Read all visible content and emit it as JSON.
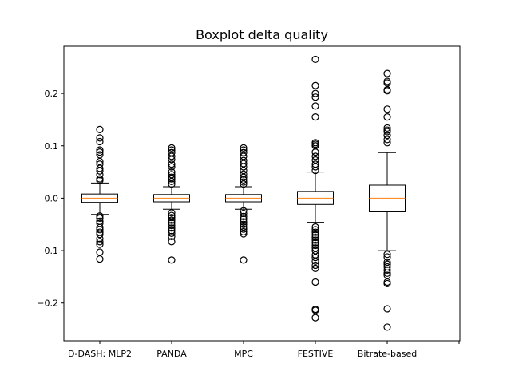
{
  "chart_data": {
    "type": "boxplot",
    "title": "Boxplot delta quality",
    "xlabel": "",
    "ylabel": "",
    "ylim": [
      -0.272,
      0.29
    ],
    "yticks": [
      -0.2,
      -0.1,
      0.0,
      0.1,
      0.2
    ],
    "ytick_labels": [
      "−0.2",
      "−0.1",
      "0.0",
      "0.1",
      "0.2"
    ],
    "categories": [
      "D-DASH: MLP2",
      "PANDA",
      "MPC",
      "FESTIVE",
      "Bitrate-based"
    ],
    "boxes": [
      {
        "label": "D-DASH: MLP2",
        "whisker_low": -0.031,
        "q1": -0.008,
        "median": 0.0,
        "q3": 0.008,
        "whisker_high": 0.029,
        "outliers": [
          0.131,
          0.115,
          0.108,
          0.092,
          0.088,
          0.083,
          0.07,
          0.065,
          0.057,
          0.052,
          0.045,
          0.037,
          0.034,
          -0.034,
          -0.038,
          -0.044,
          -0.048,
          -0.056,
          -0.06,
          -0.065,
          -0.069,
          -0.077,
          -0.083,
          -0.088,
          -0.103,
          -0.116
        ]
      },
      {
        "label": "PANDA",
        "whisker_low": -0.021,
        "q1": -0.007,
        "median": 0.0,
        "q3": 0.007,
        "whisker_high": 0.022,
        "outliers": [
          0.096,
          0.092,
          0.087,
          0.08,
          0.074,
          0.065,
          0.06,
          0.05,
          0.045,
          0.04,
          0.037,
          0.032,
          0.027,
          -0.028,
          -0.033,
          -0.037,
          -0.042,
          -0.047,
          -0.052,
          -0.057,
          -0.062,
          -0.067,
          -0.073,
          -0.083,
          -0.118
        ]
      },
      {
        "label": "MPC",
        "whisker_low": -0.021,
        "q1": -0.007,
        "median": 0.0,
        "q3": 0.007,
        "whisker_high": 0.022,
        "outliers": [
          0.096,
          0.092,
          0.087,
          0.08,
          0.072,
          0.066,
          0.06,
          0.053,
          0.046,
          0.04,
          0.035,
          0.031,
          0.027,
          -0.024,
          -0.029,
          -0.035,
          -0.04,
          -0.045,
          -0.05,
          -0.055,
          -0.059,
          -0.064,
          -0.068,
          -0.118
        ]
      },
      {
        "label": "FESTIVE",
        "whisker_low": -0.046,
        "q1": -0.012,
        "median": 0.0,
        "q3": 0.013,
        "whisker_high": 0.05,
        "outliers": [
          0.265,
          0.215,
          0.2,
          0.193,
          0.176,
          0.155,
          0.106,
          0.103,
          0.1,
          0.088,
          0.08,
          0.073,
          0.065,
          0.06,
          0.053,
          -0.055,
          -0.06,
          -0.065,
          -0.07,
          -0.075,
          -0.08,
          -0.085,
          -0.09,
          -0.095,
          -0.1,
          -0.108,
          -0.113,
          -0.12,
          -0.128,
          -0.134,
          -0.16,
          -0.212,
          -0.214,
          -0.228
        ]
      },
      {
        "label": "Bitrate-based",
        "whisker_low": -0.1,
        "q1": -0.026,
        "median": 0.0,
        "q3": 0.025,
        "whisker_high": 0.087,
        "outliers": [
          0.238,
          0.223,
          0.22,
          0.207,
          0.205,
          0.17,
          0.155,
          0.134,
          0.13,
          0.127,
          0.12,
          0.112,
          0.106,
          -0.107,
          -0.112,
          -0.122,
          -0.126,
          -0.131,
          -0.137,
          -0.143,
          -0.147,
          -0.16,
          -0.163,
          -0.211,
          -0.246
        ]
      }
    ],
    "colors": {
      "box": "#000000",
      "median": "#ff7f0e",
      "background": "#ffffff"
    },
    "grid": false,
    "legend": "none"
  }
}
